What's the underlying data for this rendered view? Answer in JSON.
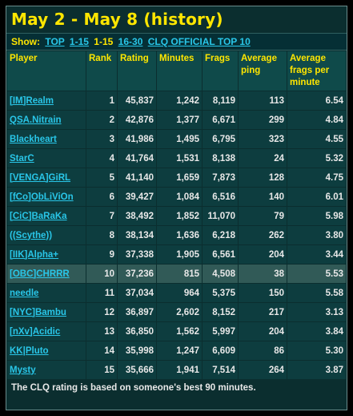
{
  "title": "May 2 - May 8 (history)",
  "show": {
    "label": "Show:",
    "links": [
      "TOP",
      "1-15",
      "1-15",
      "16-30",
      "CLQ OFFICIAL TOP 10"
    ]
  },
  "columns": [
    "Player",
    "Rank",
    "Rating",
    "Minutes",
    "Frags",
    "Average ping",
    "Average frags per minute"
  ],
  "rows": [
    {
      "player": "[IM]Realm",
      "rank": "1",
      "rating": "45,837",
      "minutes": "1,242",
      "frags": "8,119",
      "ping": "113",
      "fpm": "6.54"
    },
    {
      "player": "QSA.Nitrain",
      "rank": "2",
      "rating": "42,876",
      "minutes": "1,377",
      "frags": "6,671",
      "ping": "299",
      "fpm": "4.84"
    },
    {
      "player": "Blackheart",
      "rank": "3",
      "rating": "41,986",
      "minutes": "1,495",
      "frags": "6,795",
      "ping": "323",
      "fpm": "4.55"
    },
    {
      "player": "StarC",
      "rank": "4",
      "rating": "41,764",
      "minutes": "1,531",
      "frags": "8,138",
      "ping": "24",
      "fpm": "5.32"
    },
    {
      "player": "[VENGA]GiRL",
      "rank": "5",
      "rating": "41,140",
      "minutes": "1,659",
      "frags": "7,873",
      "ping": "128",
      "fpm": "4.75"
    },
    {
      "player": "[fCo]ObLiViOn",
      "rank": "6",
      "rating": "39,427",
      "minutes": "1,084",
      "frags": "6,516",
      "ping": "140",
      "fpm": "6.01"
    },
    {
      "player": "[CiC]BaRaKa",
      "rank": "7",
      "rating": "38,492",
      "minutes": "1,852",
      "frags": "11,070",
      "ping": "79",
      "fpm": "5.98"
    },
    {
      "player": "((Scythe))",
      "rank": "8",
      "rating": "38,134",
      "minutes": "1,636",
      "frags": "6,218",
      "ping": "262",
      "fpm": "3.80"
    },
    {
      "player": "[IIK]Alpha+",
      "rank": "9",
      "rating": "37,338",
      "minutes": "1,905",
      "frags": "6,561",
      "ping": "204",
      "fpm": "3.44"
    },
    {
      "player": "[OBC]CHRRR",
      "rank": "10",
      "rating": "37,236",
      "minutes": "815",
      "frags": "4,508",
      "ping": "38",
      "fpm": "5.53",
      "highlight": true
    },
    {
      "player": "needle",
      "rank": "11",
      "rating": "37,034",
      "minutes": "964",
      "frags": "5,375",
      "ping": "150",
      "fpm": "5.58"
    },
    {
      "player": "[NYC]Bambu",
      "rank": "12",
      "rating": "36,897",
      "minutes": "2,602",
      "frags": "8,152",
      "ping": "217",
      "fpm": "3.13"
    },
    {
      "player": "[nXv]Acidic",
      "rank": "13",
      "rating": "36,850",
      "minutes": "1,562",
      "frags": "5,997",
      "ping": "204",
      "fpm": "3.84"
    },
    {
      "player": "KK|Pluto",
      "rank": "14",
      "rating": "35,998",
      "minutes": "1,247",
      "frags": "6,609",
      "ping": "86",
      "fpm": "5.30"
    },
    {
      "player": "Mysty",
      "rank": "15",
      "rating": "35,666",
      "minutes": "1,941",
      "frags": "7,514",
      "ping": "264",
      "fpm": "3.87"
    }
  ],
  "footer": "The CLQ rating is based on someone's best 90 minutes.",
  "colors": {
    "accent": "#ffe600",
    "link": "#29c6e8",
    "panel": "#0b2e2f",
    "highlight": "#315a57"
  }
}
